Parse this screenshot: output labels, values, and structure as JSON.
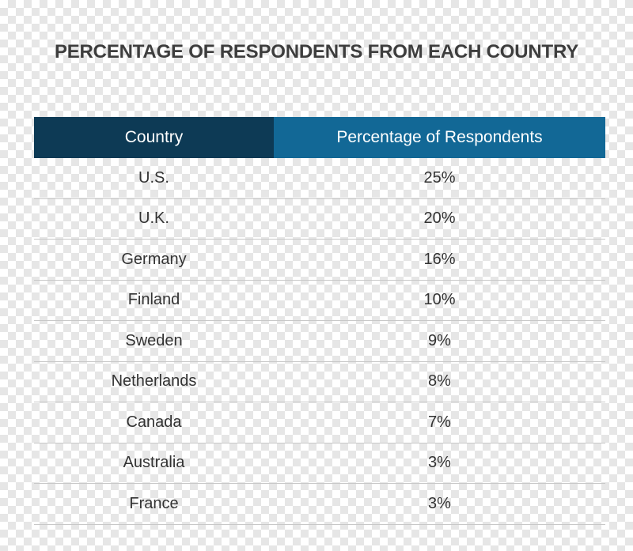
{
  "chart_data": {
    "type": "table",
    "title": "PERCENTAGE OF RESPONDENTS FROM EACH COUNTRY",
    "columns": [
      "Country",
      "Percentage of Respondents"
    ],
    "rows": [
      {
        "country": "U.S.",
        "percentage": "25%"
      },
      {
        "country": "U.K.",
        "percentage": "20%"
      },
      {
        "country": "Germany",
        "percentage": "16%"
      },
      {
        "country": "Finland",
        "percentage": "10%"
      },
      {
        "country": "Sweden",
        "percentage": "9%"
      },
      {
        "country": "Netherlands",
        "percentage": "8%"
      },
      {
        "country": "Canada",
        "percentage": "7%"
      },
      {
        "country": "Australia",
        "percentage": "3%"
      },
      {
        "country": "France",
        "percentage": "3%"
      }
    ],
    "values": [
      25,
      20,
      16,
      10,
      9,
      8,
      7,
      3,
      3
    ],
    "colors": {
      "header_country": "#0d3a55",
      "header_percentage": "#126896",
      "title": "#3d3d3d"
    }
  }
}
